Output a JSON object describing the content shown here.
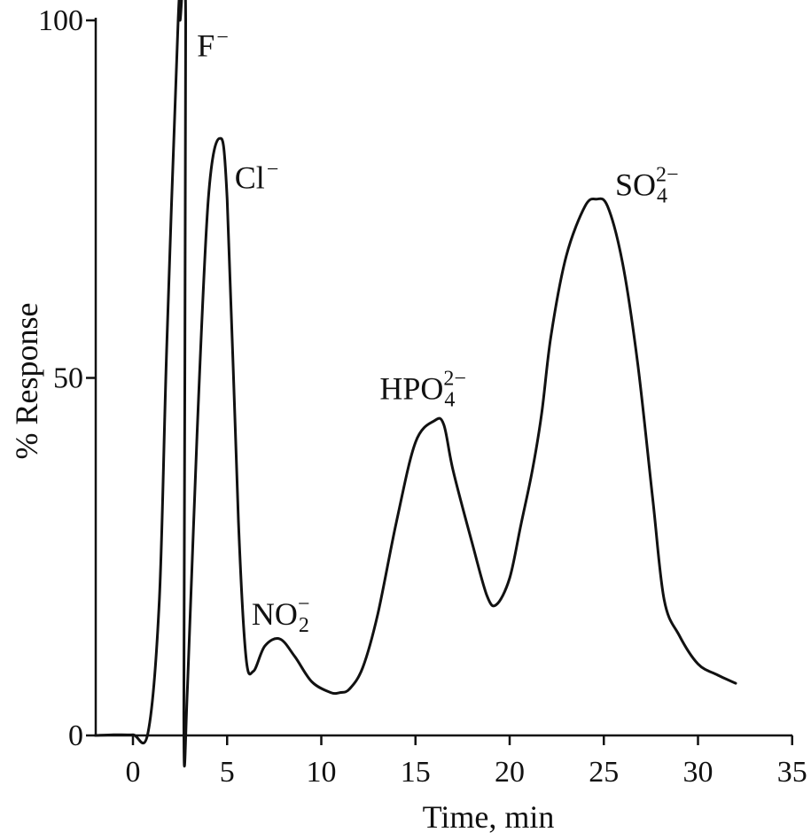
{
  "chart_data": {
    "type": "line",
    "title": "",
    "xlabel": "Time, min",
    "ylabel": "% Response",
    "xlim": [
      -2,
      35
    ],
    "ylim": [
      0,
      100
    ],
    "x_ticks": [
      0,
      5,
      10,
      15,
      20,
      25,
      30,
      35
    ],
    "x_tick_labels": [
      "0",
      "5",
      "10",
      "15",
      "20",
      "25",
      "30",
      "35"
    ],
    "y_ticks": [
      0,
      50,
      100
    ],
    "y_tick_labels": [
      "0",
      "50",
      "100"
    ],
    "grid": false,
    "legend": "none",
    "series": [
      {
        "x": [
          -2,
          -1,
          0,
          0.8,
          1.4,
          1.8,
          2.4,
          2.5,
          2.8,
          2.7,
          2.9,
          3.4,
          4.0,
          4.6,
          5.0,
          5.6,
          6.0,
          6.4,
          7.0,
          7.8,
          8.6,
          9.5,
          10.5,
          11.0,
          11.5,
          12.2,
          13.0,
          14.0,
          15.0,
          16.0,
          16.5,
          17.0,
          18.0,
          18.8,
          19.3,
          20.0,
          20.6,
          21.2,
          21.7,
          22.2,
          23.0,
          24.0,
          24.6,
          25.2,
          26.0,
          26.8,
          27.6,
          28.2,
          29.0,
          30.0,
          31.0,
          32.0
        ],
        "y": [
          0,
          0.1,
          0.1,
          0.4,
          19,
          55,
          100,
          100,
          100,
          3,
          7,
          42,
          75,
          83.5,
          75,
          30,
          11,
          9,
          12.5,
          13.5,
          11,
          7.5,
          6,
          6,
          6.5,
          9.5,
          17,
          30,
          41,
          44,
          43.5,
          37,
          27,
          19.5,
          18.3,
          22,
          29.5,
          37,
          45,
          56,
          67,
          74,
          75,
          74,
          66,
          52,
          33,
          19,
          14,
          10,
          8.5,
          7.3
        ]
      }
    ],
    "annotations": [
      {
        "x": 3.4,
        "y": 95,
        "base": "F",
        "sup": "−",
        "sub": ""
      },
      {
        "x": 5.4,
        "y": 76.5,
        "base": "Cl",
        "sup": "−",
        "sub": ""
      },
      {
        "x": 6.3,
        "y": 15.5,
        "base": "NO",
        "sup": "−",
        "sub": "2"
      },
      {
        "x": 13.1,
        "y": 47,
        "base": "HPO",
        "sup": "2−",
        "sub": "4"
      },
      {
        "x": 25.6,
        "y": 75.5,
        "base": "SO",
        "sup": "2−",
        "sub": "4"
      }
    ]
  }
}
